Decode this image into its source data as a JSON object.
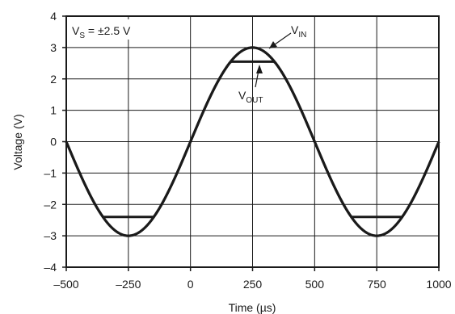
{
  "chart_data": {
    "type": "line",
    "xlabel": "Time (µs)",
    "ylabel": "Voltage (V)",
    "xlim": [
      -500,
      1000
    ],
    "ylim": [
      -4,
      4
    ],
    "x_ticks": [
      -500,
      -250,
      0,
      250,
      500,
      750,
      1000
    ],
    "x_tick_labels": [
      "–500",
      "–250",
      "0",
      "250",
      "500",
      "750",
      "1000"
    ],
    "y_ticks": [
      4,
      3,
      2,
      1,
      0,
      -1,
      -2,
      -3,
      -4
    ],
    "y_tick_labels": [
      "4",
      "3",
      "2",
      "1",
      "0",
      "–1",
      "–2",
      "–3",
      "–4"
    ],
    "grid": true,
    "series": [
      {
        "name": "VIN",
        "x": [
          -500,
          -437.5,
          -375,
          -312.5,
          -250,
          -187.5,
          -125,
          -62.5,
          0,
          62.5,
          125,
          187.5,
          250,
          312.5,
          375,
          437.5,
          500,
          562.5,
          625,
          687.5,
          750,
          812.5,
          875,
          937.5,
          1000
        ],
        "y": [
          0,
          -1.15,
          -2.12,
          -2.77,
          -3.0,
          -2.77,
          -2.12,
          -1.15,
          0,
          1.15,
          2.12,
          2.77,
          3.0,
          2.77,
          2.12,
          1.15,
          0,
          -1.15,
          -2.12,
          -2.77,
          -3.0,
          -2.77,
          -2.12,
          -1.15,
          0
        ]
      },
      {
        "name": "VOUT",
        "x": [
          -500,
          -437.5,
          -375,
          -312.5,
          -250,
          -187.5,
          -125,
          -62.5,
          0,
          62.5,
          125,
          187.5,
          250,
          312.5,
          375,
          437.5,
          500,
          562.5,
          625,
          687.5,
          750,
          812.5,
          875,
          937.5,
          1000
        ],
        "y": [
          0,
          -1.15,
          -2.12,
          -2.4,
          -2.4,
          -2.4,
          -2.12,
          -1.15,
          0,
          1.15,
          2.12,
          2.55,
          2.55,
          2.55,
          2.12,
          1.15,
          0,
          -1.15,
          -2.12,
          -2.4,
          -2.4,
          -2.4,
          -2.12,
          -1.15,
          0
        ]
      }
    ],
    "annotations": {
      "supply": {
        "main": "V",
        "sub": "S",
        "rest": " = ±2.5 V"
      },
      "vin": {
        "main": "V",
        "sub": "IN"
      },
      "vout": {
        "main": "V",
        "sub": "OUT"
      }
    }
  }
}
